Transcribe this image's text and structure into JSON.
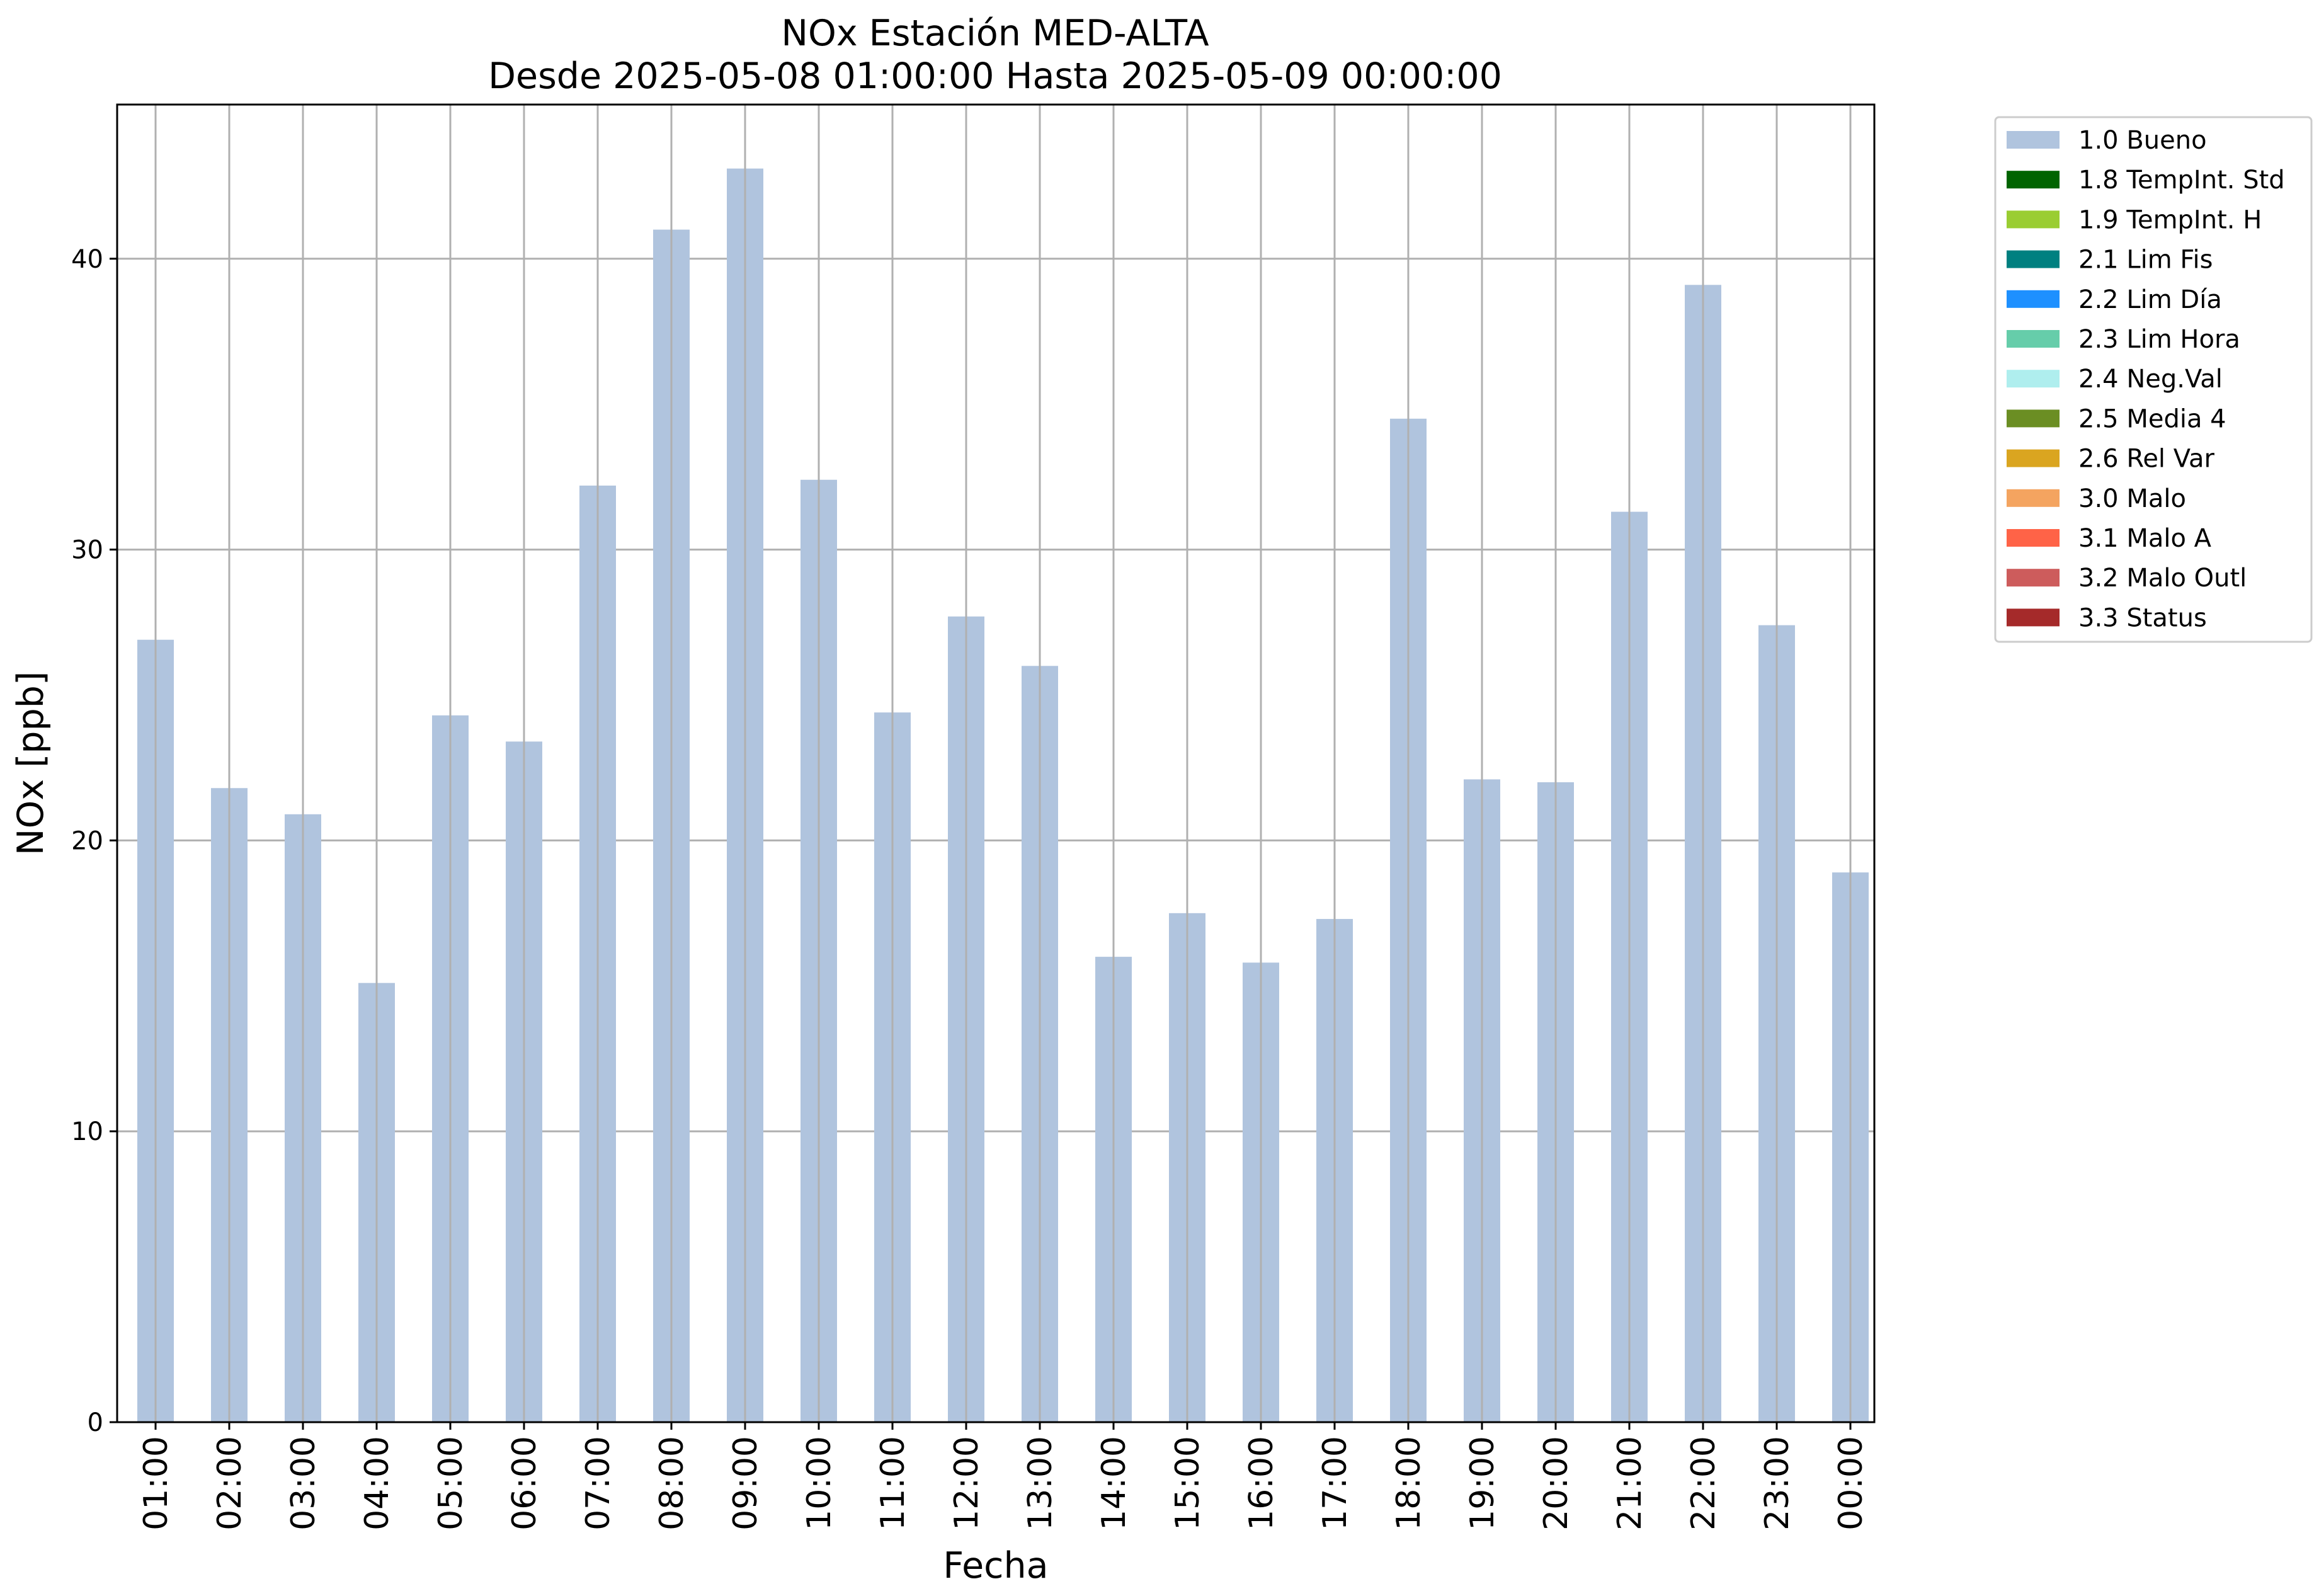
{
  "chart_data": {
    "type": "bar",
    "title": "NOx Estación MED-ALTA",
    "subtitle": "Desde 2025-05-08 01:00:00 Hasta 2025-05-09 00:00:00",
    "xlabel": "Fecha",
    "ylabel": "NOx [ppb]",
    "ylim": [
      0,
      45.3
    ],
    "yticks": [
      "0",
      "10",
      "20",
      "30",
      "40"
    ],
    "grid": true,
    "legend_position": "outside-top-right",
    "categories": [
      "01:00",
      "02:00",
      "03:00",
      "04:00",
      "05:00",
      "06:00",
      "07:00",
      "08:00",
      "09:00",
      "10:00",
      "11:00",
      "12:00",
      "13:00",
      "14:00",
      "15:00",
      "16:00",
      "17:00",
      "18:00",
      "19:00",
      "20:00",
      "21:00",
      "22:00",
      "23:00",
      "00:00"
    ],
    "series": [
      {
        "name": "1.0 Bueno",
        "color": "#b0c4de",
        "values": [
          26.9,
          21.8,
          20.9,
          15.1,
          24.3,
          23.4,
          32.2,
          41.0,
          43.1,
          32.4,
          24.4,
          27.7,
          26.0,
          16.0,
          17.5,
          15.8,
          17.3,
          34.5,
          22.1,
          22.0,
          31.3,
          39.1,
          27.4,
          18.9
        ]
      }
    ],
    "legend": [
      {
        "label": "1.0 Bueno",
        "color": "#b0c4de"
      },
      {
        "label": "1.8 TempInt. Std",
        "color": "#006400"
      },
      {
        "label": "1.9 TempInt. H",
        "color": "#9acd32"
      },
      {
        "label": "2.1 Lim Fis",
        "color": "#008080"
      },
      {
        "label": "2.2 Lim Día",
        "color": "#1e90ff"
      },
      {
        "label": "2.3 Lim Hora",
        "color": "#66cdaa"
      },
      {
        "label": "2.4 Neg.Val",
        "color": "#afeeee"
      },
      {
        "label": "2.5 Media 4",
        "color": "#6b8e23"
      },
      {
        "label": "2.6 Rel Var",
        "color": "#daa520"
      },
      {
        "label": "3.0 Malo",
        "color": "#f4a460"
      },
      {
        "label": "3.1 Malo A",
        "color": "#ff6347"
      },
      {
        "label": "3.2 Malo Outl",
        "color": "#cd5c5c"
      },
      {
        "label": "3.3 Status",
        "color": "#a52a2a"
      }
    ]
  }
}
